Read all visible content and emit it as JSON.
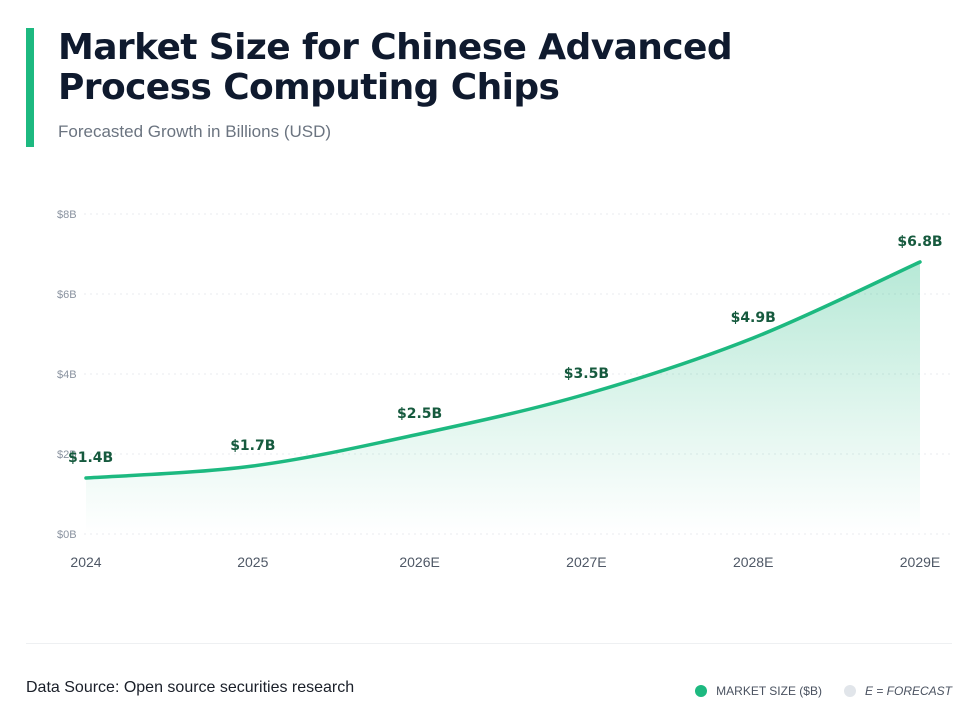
{
  "header": {
    "title_line1": "Market Size for Chinese Advanced",
    "title_line2": "Process Computing Chips",
    "subtitle": "Forecasted Growth in Billions (USD)"
  },
  "footer": {
    "source": "Data Source: Open source securities research"
  },
  "legend": {
    "market_label": "MARKET SIZE ($B)",
    "forecast_label": "E = FORECAST"
  },
  "colors": {
    "accent": "#1db980",
    "label": "#165a3e",
    "tick": "#8a93a0",
    "grid": "#e8ebef"
  },
  "chart_data": {
    "type": "area",
    "title": "Market Size for Chinese Advanced Process Computing Chips",
    "subtitle": "Forecasted Growth in Billions (USD)",
    "categories": [
      "2024",
      "2025",
      "2026E",
      "2027E",
      "2028E",
      "2029E"
    ],
    "series": [
      {
        "name": "MARKET SIZE ($B)",
        "values": [
          1.4,
          1.7,
          2.5,
          3.5,
          4.9,
          6.8
        ],
        "labels": [
          "$1.4B",
          "$1.7B",
          "$2.5B",
          "$3.5B",
          "$4.9B",
          "$6.8B"
        ]
      }
    ],
    "yticks": [
      0,
      2,
      4,
      6,
      8
    ],
    "ytick_labels": [
      "$0B",
      "$2B",
      "$4B",
      "$6B",
      "$8B"
    ],
    "ylim": [
      0,
      8
    ],
    "grid": true,
    "legend": "bottom-right"
  }
}
